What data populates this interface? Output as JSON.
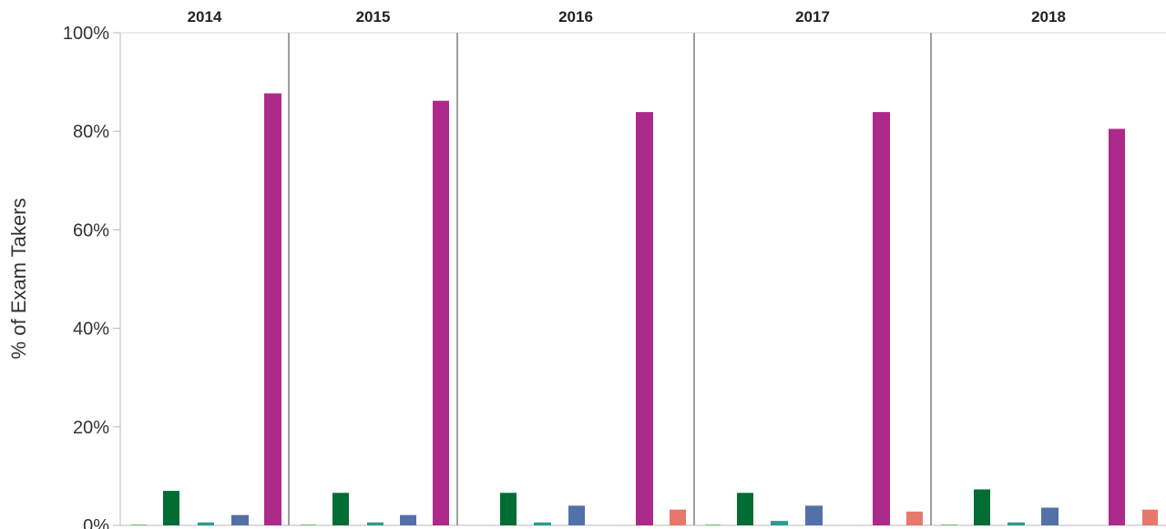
{
  "chart_data": {
    "type": "bar",
    "ylabel": "% of Exam Takers",
    "ylim": [
      0,
      100
    ],
    "yticks": [
      "0%",
      "20%",
      "40%",
      "60%",
      "80%",
      "100%"
    ],
    "grid": false,
    "panels": [
      {
        "label": "2014",
        "bars": [
          {
            "value": 0.2,
            "color": "#7fc97f"
          },
          {
            "value": 7.0,
            "color": "#006d33"
          },
          {
            "value": 0.6,
            "color": "#2a9d8f"
          },
          {
            "value": 2.1,
            "color": "#5470a8"
          },
          {
            "value": 87.7,
            "color": "#ac2a8a"
          }
        ]
      },
      {
        "label": "2015",
        "bars": [
          {
            "value": 0.2,
            "color": "#7fc97f"
          },
          {
            "value": 6.6,
            "color": "#006d33"
          },
          {
            "value": 0.6,
            "color": "#2a9d8f"
          },
          {
            "value": 2.1,
            "color": "#5470a8"
          },
          {
            "value": 86.2,
            "color": "#ac2a8a"
          }
        ]
      },
      {
        "label": "2016",
        "bars": [
          {
            "value": 6.6,
            "color": "#006d33"
          },
          {
            "value": 0.6,
            "color": "#2a9d8f"
          },
          {
            "value": 4.0,
            "color": "#5470a8"
          },
          {
            "value": 83.9,
            "color": "#ac2a8a"
          },
          {
            "value": 3.2,
            "color": "#e8786c"
          }
        ]
      },
      {
        "label": "2017",
        "bars": [
          {
            "value": 0.2,
            "color": "#7fc97f"
          },
          {
            "value": 6.6,
            "color": "#006d33"
          },
          {
            "value": 0.9,
            "color": "#2a9d8f"
          },
          {
            "value": 4.0,
            "color": "#5470a8"
          },
          {
            "value": 83.9,
            "color": "#ac2a8a"
          },
          {
            "value": 2.8,
            "color": "#e8786c"
          }
        ]
      },
      {
        "label": "2018",
        "bars": [
          {
            "value": 0.2,
            "color": "#7fc97f"
          },
          {
            "value": 7.3,
            "color": "#006d33"
          },
          {
            "value": 0.6,
            "color": "#2a9d8f"
          },
          {
            "value": 3.6,
            "color": "#5470a8"
          },
          {
            "value": 80.5,
            "color": "#ac2a8a"
          },
          {
            "value": 3.2,
            "color": "#e8786c"
          }
        ]
      }
    ]
  }
}
